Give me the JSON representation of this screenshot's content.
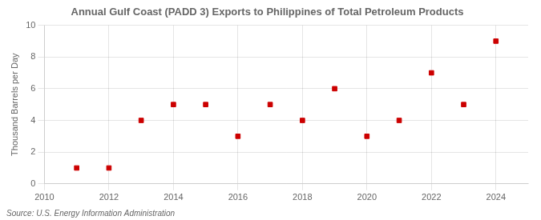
{
  "chart_data": {
    "type": "scatter",
    "title": "Annual Gulf Coast (PADD 3) Exports to Philippines of Total Petroleum Products",
    "ylabel": "Thousand Barrels per Day",
    "annotations": [
      "Source: U.S. Energy Information Administration"
    ],
    "x": [
      2011,
      2012,
      2013,
      2014,
      2015,
      2016,
      2017,
      2018,
      2019,
      2020,
      2021,
      2022,
      2023,
      2024
    ],
    "values": [
      1,
      1,
      4,
      5,
      5,
      3,
      5,
      4,
      6,
      3,
      4,
      7,
      5,
      9
    ],
    "color": "#cc0000",
    "marker": "square",
    "xlim": [
      2010,
      2025
    ],
    "ylim": [
      0,
      10
    ],
    "xticks": [
      2010,
      2012,
      2014,
      2016,
      2018,
      2020,
      2022,
      2024
    ],
    "yticks": [
      0,
      2,
      4,
      6,
      8,
      10
    ],
    "grid": true
  }
}
